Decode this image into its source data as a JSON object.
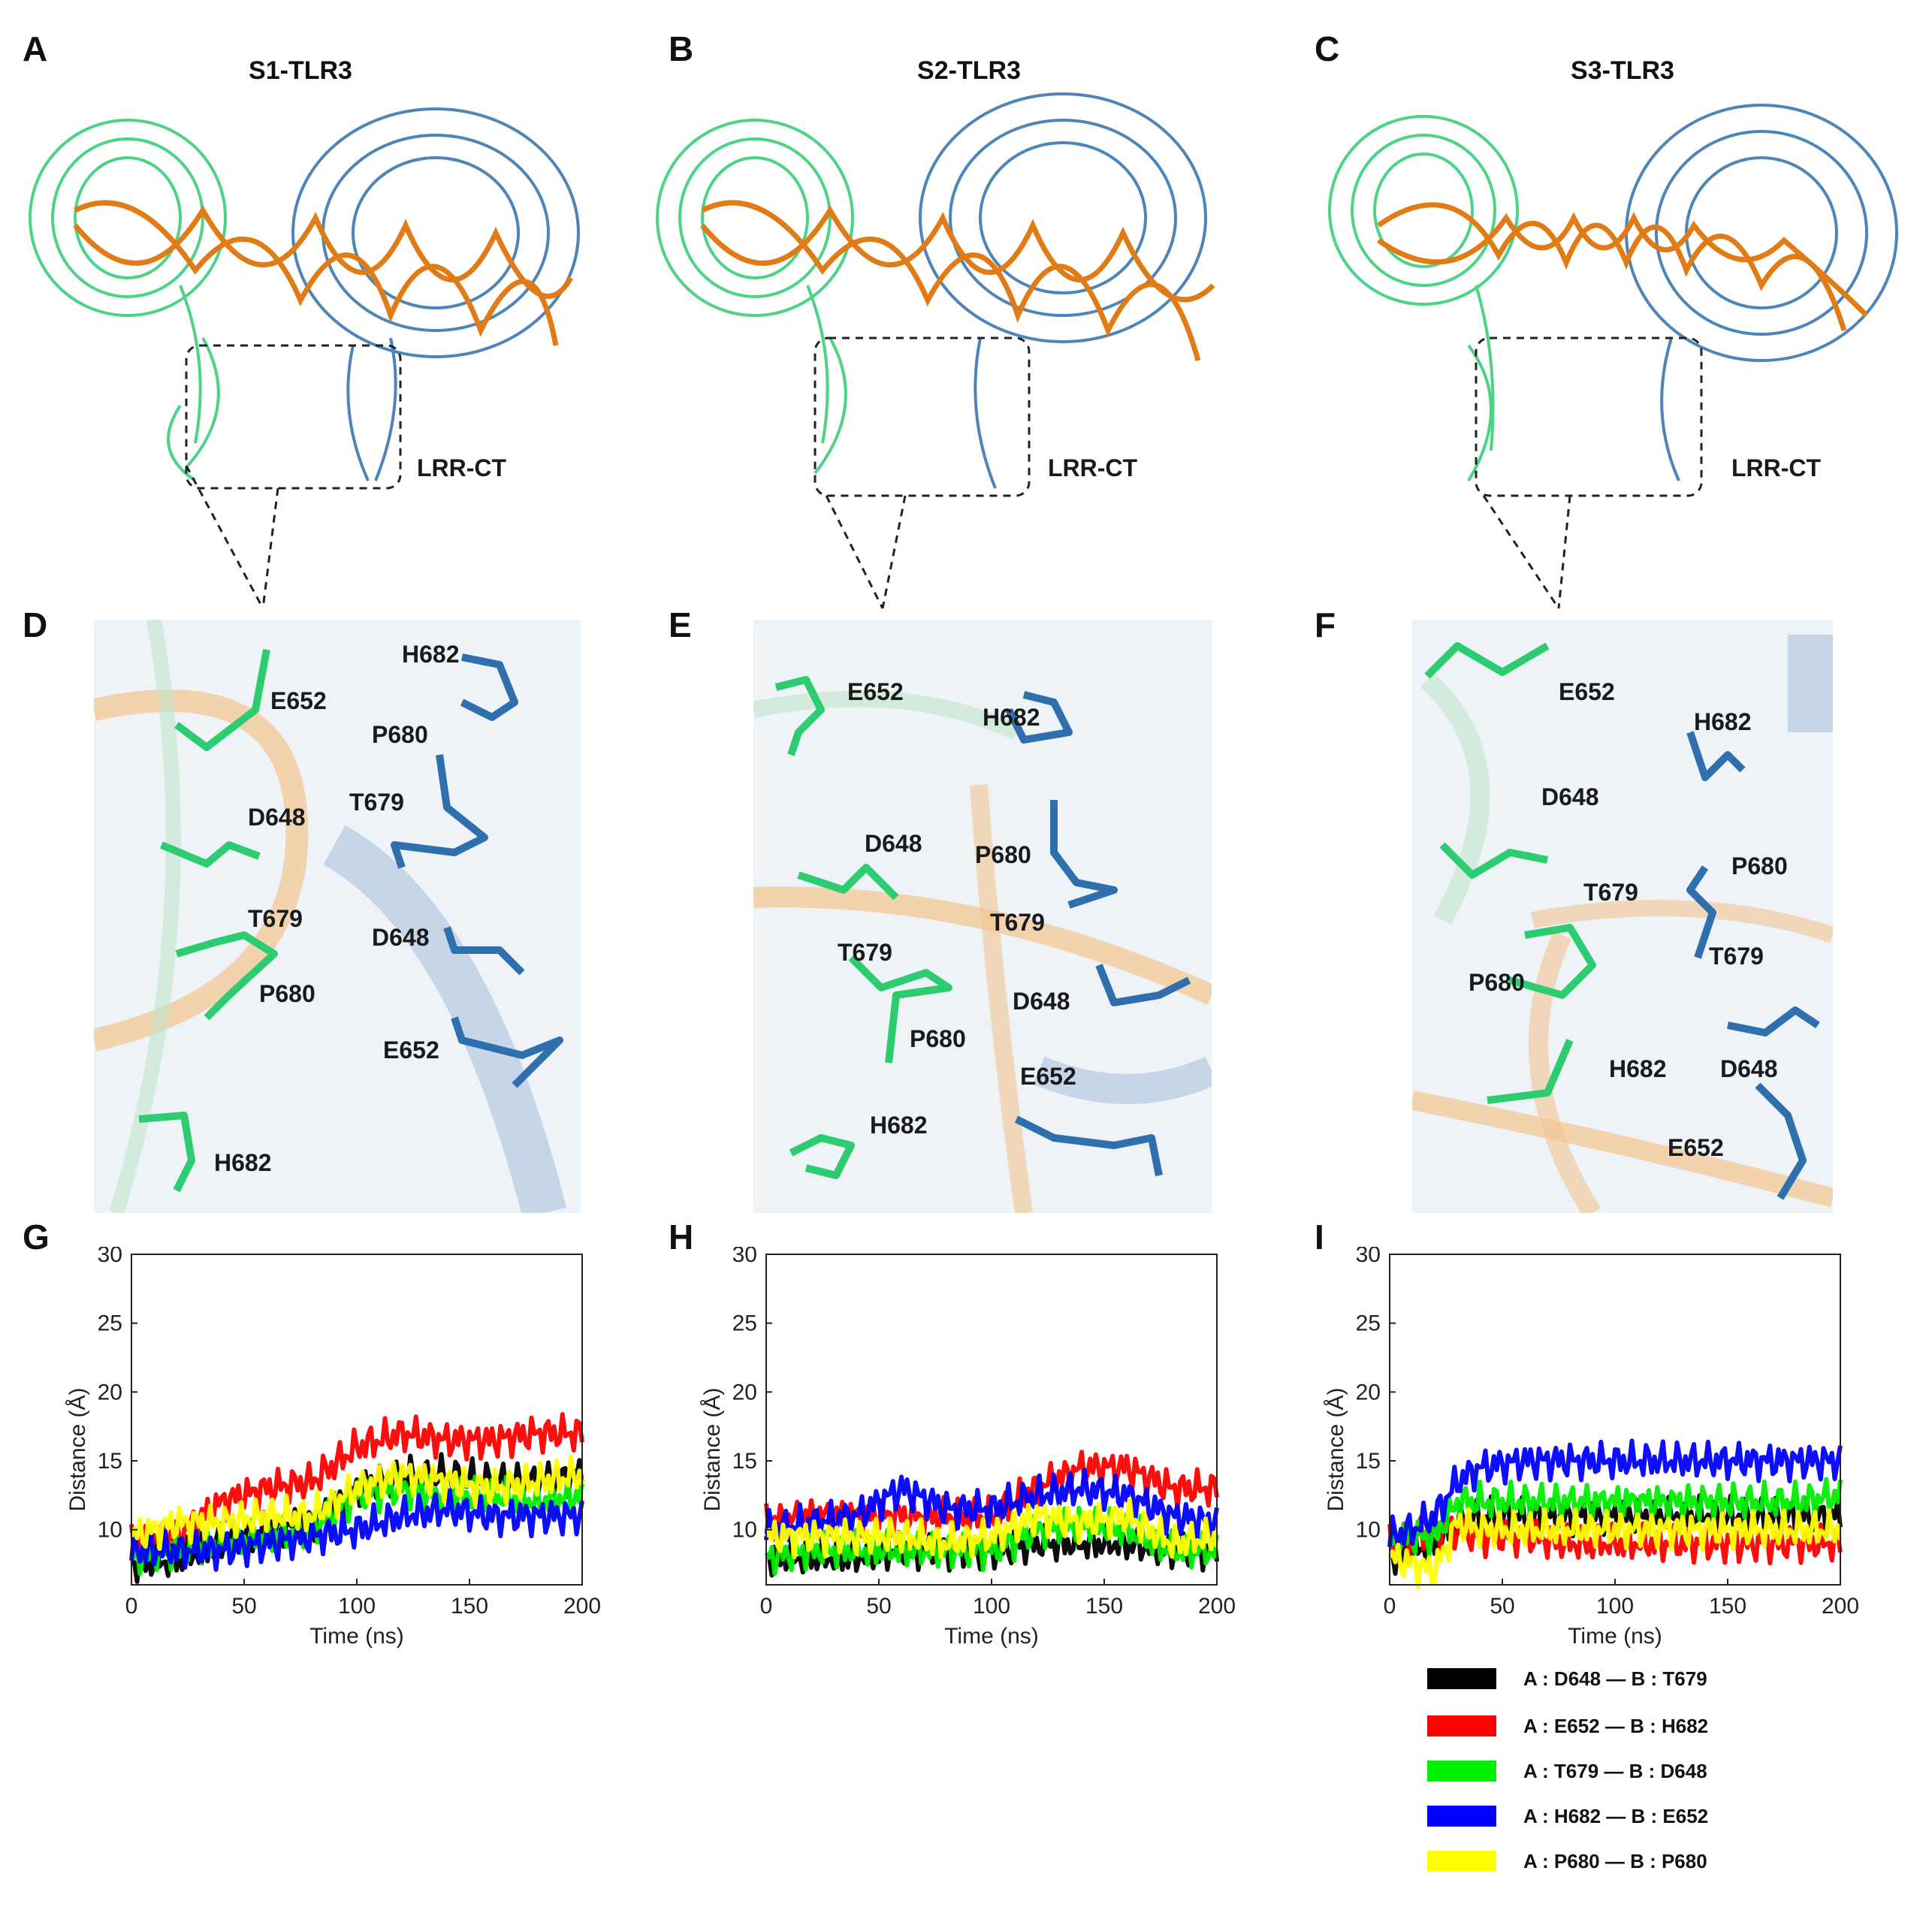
{
  "panels": {
    "letters": [
      "A",
      "B",
      "C",
      "D",
      "E",
      "F",
      "G",
      "H",
      "I"
    ],
    "titles": [
      "S1-TLR3",
      "S2-TLR3",
      "S3-TLR3"
    ],
    "lrr_ct_label": "LRR-CT"
  },
  "details": [
    {
      "labels": [
        "E652",
        "H682",
        "P680",
        "T679",
        "D648",
        "D648",
        "T679",
        "P680",
        "E652",
        "H682"
      ]
    },
    {
      "labels": [
        "E652",
        "H682",
        "D648",
        "P680",
        "T679",
        "T679",
        "P680",
        "D648",
        "E652",
        "H682"
      ]
    },
    {
      "labels": [
        "E652",
        "H682",
        "D648",
        "T679",
        "P680",
        "P680",
        "T679",
        "H682",
        "D648",
        "E652"
      ]
    }
  ],
  "colors": {
    "chain_a": "#2ecc71",
    "chain_b": "#2f6fad",
    "rna": "#e07b16",
    "series": [
      "#000000",
      "#ff0000",
      "#00ee00",
      "#0000ff",
      "#ffff00"
    ]
  },
  "legend": [
    {
      "label": "A : D648 — B : T679",
      "color": "#000000"
    },
    {
      "label": "A : E652 — B : H682",
      "color": "#ff0000"
    },
    {
      "label": "A : T679 — B : D648",
      "color": "#00ee00"
    },
    {
      "label": "A : H682 — B : E652",
      "color": "#0000ff"
    },
    {
      "label": "A : P680 — B : P680",
      "color": "#ffff00"
    }
  ],
  "chart_data": [
    {
      "type": "line",
      "panel": "G",
      "xlabel": "Time (ns)",
      "ylabel": "Distance (Å)",
      "xlim": [
        0,
        200
      ],
      "ylim": [
        6,
        30
      ],
      "xticks": [
        0,
        50,
        100,
        150,
        200
      ],
      "yticks": [
        10,
        15,
        20,
        25,
        30
      ],
      "x": [
        0,
        20,
        40,
        60,
        80,
        100,
        120,
        140,
        160,
        180,
        200
      ],
      "series": [
        {
          "name": "A : D648 — B : T679",
          "values": [
            7.5,
            7.8,
            9,
            10,
            10.5,
            13,
            14,
            14,
            13.5,
            13.5,
            14
          ]
        },
        {
          "name": "A : E652 — B : H682",
          "values": [
            9,
            9.5,
            12,
            13,
            13.5,
            16,
            17,
            16.5,
            16.5,
            17,
            17
          ]
        },
        {
          "name": "A : T679 — B : D648",
          "values": [
            8,
            8.5,
            9,
            9.5,
            10,
            12.5,
            13,
            12.5,
            12.5,
            12,
            12.5
          ]
        },
        {
          "name": "A : H682 — B : E652",
          "values": [
            8.5,
            8.5,
            8.5,
            9,
            9.5,
            10,
            11,
            11.5,
            11,
            11,
            11
          ]
        },
        {
          "name": "A : P680 — B : P680",
          "values": [
            9.5,
            10.5,
            10.5,
            11,
            11,
            13,
            14,
            13.5,
            13,
            13.5,
            14
          ]
        }
      ]
    },
    {
      "type": "line",
      "panel": "H",
      "xlabel": "Time (ns)",
      "ylabel": "Distance (Å)",
      "xlim": [
        0,
        200
      ],
      "ylim": [
        6,
        30
      ],
      "xticks": [
        0,
        50,
        100,
        150,
        200
      ],
      "yticks": [
        10,
        15,
        20,
        25,
        30
      ],
      "x": [
        0,
        20,
        40,
        60,
        80,
        100,
        120,
        140,
        160,
        180,
        200
      ],
      "series": [
        {
          "name": "A : D648 — B : T679",
          "values": [
            8,
            8,
            8,
            8.5,
            8.5,
            8.5,
            9,
            9,
            9,
            8.5,
            8.5
          ]
        },
        {
          "name": "A : E652 — B : H682",
          "values": [
            10.5,
            11,
            11,
            11,
            11,
            11,
            13,
            14.5,
            14.5,
            13,
            13
          ]
        },
        {
          "name": "A : T679 — B : D648",
          "values": [
            8,
            8.5,
            8.5,
            8.5,
            8.5,
            8.5,
            10,
            10.5,
            10,
            8.5,
            8.5
          ]
        },
        {
          "name": "A : H682 — B : E652",
          "values": [
            10,
            10.5,
            11,
            13,
            11.5,
            11.5,
            12.5,
            13,
            12.5,
            11,
            10.5
          ]
        },
        {
          "name": "A : P680 — B : P680",
          "values": [
            9.5,
            9.5,
            9.5,
            9.5,
            9,
            9.5,
            11,
            10.5,
            11,
            9,
            9.5
          ]
        }
      ]
    },
    {
      "type": "line",
      "panel": "I",
      "xlabel": "Time (ns)",
      "ylabel": "Distance (Å)",
      "xlim": [
        0,
        200
      ],
      "ylim": [
        6,
        30
      ],
      "xticks": [
        0,
        50,
        100,
        150,
        200
      ],
      "yticks": [
        10,
        15,
        20,
        25,
        30
      ],
      "x": [
        0,
        10,
        20,
        30,
        40,
        60,
        80,
        100,
        120,
        140,
        160,
        180,
        200
      ],
      "series": [
        {
          "name": "A : D648 — B : T679",
          "values": [
            8,
            8.5,
            9,
            10.5,
            11,
            11,
            11,
            11,
            11,
            11,
            11,
            11,
            11
          ]
        },
        {
          "name": "A : E652 — B : H682",
          "values": [
            9,
            9.5,
            10,
            10,
            9.5,
            9.5,
            9,
            9,
            9,
            9,
            9,
            9,
            9
          ]
        },
        {
          "name": "A : T679 — B : D648",
          "values": [
            9,
            9.5,
            9.5,
            12,
            12,
            12,
            12,
            12,
            12,
            12,
            12,
            12,
            12.5
          ]
        },
        {
          "name": "A : H682 — B : E652",
          "values": [
            9.5,
            10,
            11,
            13.5,
            14.5,
            15,
            15,
            15,
            15,
            15,
            15,
            15,
            15
          ]
        },
        {
          "name": "A : P680 — B : P680",
          "values": [
            8,
            7.5,
            7,
            10.5,
            10,
            10,
            10,
            10,
            10,
            10,
            10,
            10,
            10
          ]
        }
      ]
    }
  ]
}
